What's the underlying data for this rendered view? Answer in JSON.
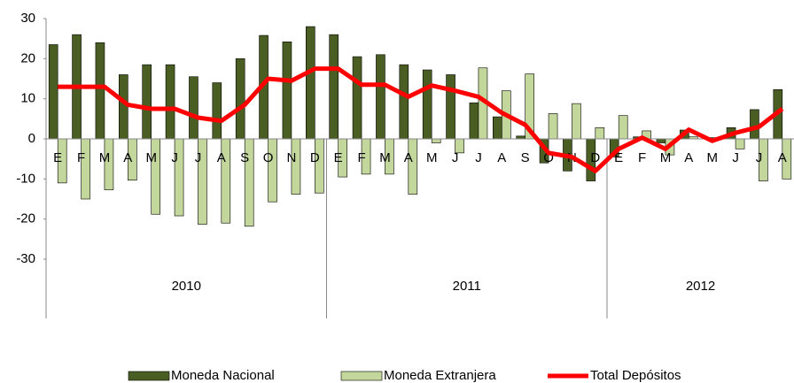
{
  "chart_data": {
    "type": "bar_line",
    "categories": [
      "E",
      "F",
      "M",
      "A",
      "M",
      "J",
      "J",
      "A",
      "S",
      "O",
      "N",
      "D",
      "E",
      "F",
      "M",
      "A",
      "M",
      "J",
      "J",
      "A",
      "S",
      "O",
      "N",
      "D",
      "E",
      "F",
      "M",
      "A",
      "M",
      "J",
      "J",
      "A"
    ],
    "x_groups": [
      {
        "label": "2010",
        "count": 12
      },
      {
        "label": "2011",
        "count": 12
      },
      {
        "label": "2012",
        "count": 8
      }
    ],
    "series": [
      {
        "name": "Moneda Nacional",
        "type": "bar",
        "color": "#4a5e23",
        "values": [
          23.5,
          26,
          24,
          16,
          18.5,
          18.5,
          15.5,
          14,
          20,
          25.8,
          24.2,
          28,
          26,
          20.5,
          21,
          18.5,
          17.2,
          16,
          9,
          5.5,
          0.7,
          -6,
          -8,
          -10.5,
          -4.5,
          0.5,
          -1,
          2.2,
          0.3,
          2.8,
          7.3,
          12.3
        ]
      },
      {
        "name": "Moneda Extranjera",
        "type": "bar",
        "color": "#c3d69b",
        "values": [
          -11,
          -15,
          -12.7,
          -10.3,
          -18.8,
          -19.2,
          -21.3,
          -21,
          -21.8,
          -15.7,
          -13.8,
          -13.5,
          -9.5,
          -8.8,
          -8.8,
          -13.8,
          -1,
          -3.5,
          17.7,
          12,
          16.2,
          6.3,
          8.8,
          2.8,
          5.8,
          2,
          -4,
          0.5,
          0.3,
          -2.5,
          -10.5,
          -10
        ]
      },
      {
        "name": "Total Depósitos",
        "type": "line",
        "color": "#ff0000",
        "values": [
          13,
          13,
          13,
          8.5,
          7.5,
          7.5,
          5.3,
          4.5,
          8.5,
          15,
          14.5,
          17.5,
          17.5,
          13.5,
          13.5,
          10.5,
          13.3,
          12,
          10.5,
          6.5,
          3.5,
          -3.5,
          -4.5,
          -8,
          -2.5,
          0.3,
          -2.5,
          2.3,
          -0.5,
          1.5,
          3,
          7.5
        ]
      }
    ],
    "ylim": [
      -30,
      30
    ],
    "yticks": [
      -30,
      -20,
      -10,
      0,
      10,
      20,
      30
    ]
  }
}
